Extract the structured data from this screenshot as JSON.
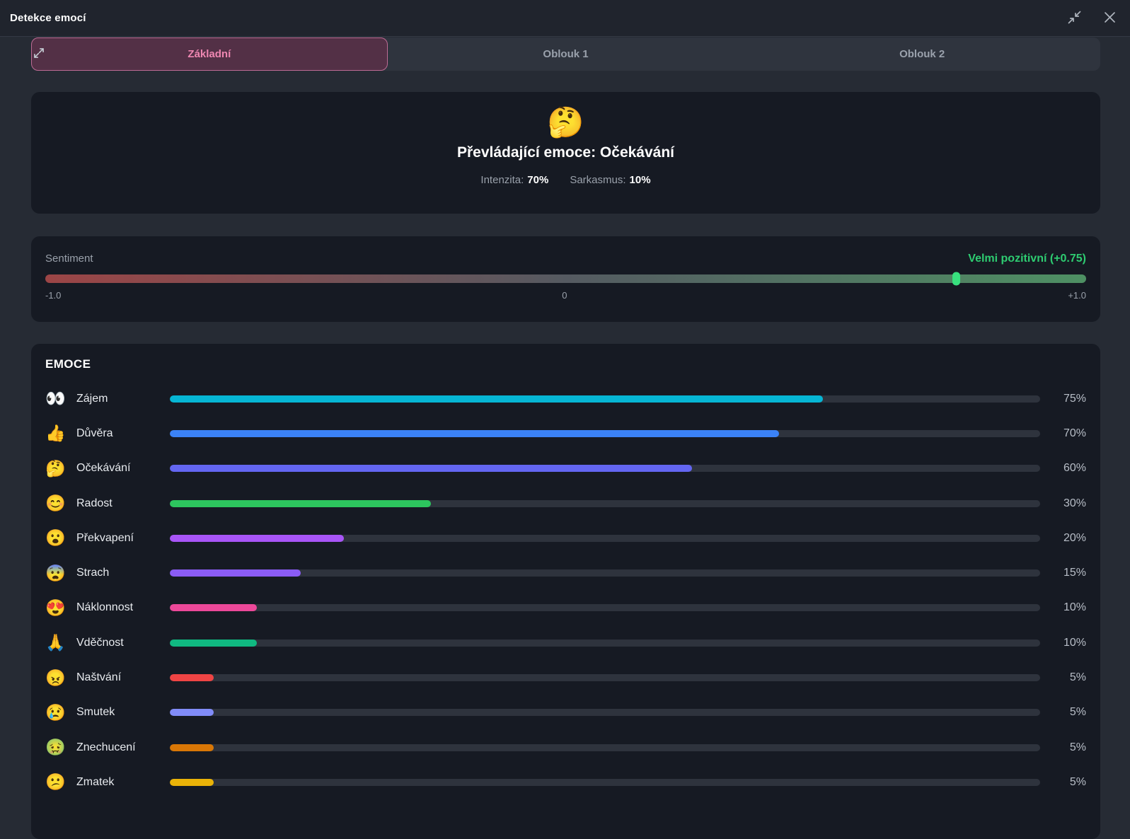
{
  "window": {
    "title": "Detekce emocí"
  },
  "tabs": [
    {
      "label": "Základní",
      "active": true
    },
    {
      "label": "Oblouk 1",
      "active": false
    },
    {
      "label": "Oblouk 2",
      "active": false
    }
  ],
  "dominant": {
    "emoji": "🤔",
    "title": "Převládající emoce: Očekávání",
    "intensity_label": "Intenzita:",
    "intensity_value": "70%",
    "sarcasm_label": "Sarkasmus:",
    "sarcasm_value": "10%"
  },
  "sentiment": {
    "label": "Sentiment",
    "value_text": "Velmi pozitivní (+0.75)",
    "value": 0.75,
    "thumb_pos_pct": 87.5,
    "accent": "#2ecc71",
    "thumb_color": "#38e07e",
    "gradient": [
      "#9c4546",
      "#555a61",
      "#4e9063"
    ],
    "min_label": "-1.0",
    "mid_label": "0",
    "max_label": "+1.0"
  },
  "emotions": {
    "header": "EMOCE",
    "rows": [
      {
        "emoji": "👀",
        "label": "Zájem",
        "pct": 75,
        "pct_label": "75%",
        "color": "#06b6d4"
      },
      {
        "emoji": "👍",
        "label": "Důvěra",
        "pct": 70,
        "pct_label": "70%",
        "color": "#3b82f6"
      },
      {
        "emoji": "🤔",
        "label": "Očekávání",
        "pct": 60,
        "pct_label": "60%",
        "color": "#6366f1"
      },
      {
        "emoji": "😊",
        "label": "Radost",
        "pct": 30,
        "pct_label": "30%",
        "color": "#2dc55e"
      },
      {
        "emoji": "😮",
        "label": "Překvapení",
        "pct": 20,
        "pct_label": "20%",
        "color": "#a855f7"
      },
      {
        "emoji": "😨",
        "label": "Strach",
        "pct": 15,
        "pct_label": "15%",
        "color": "#8b5cf6"
      },
      {
        "emoji": "😍",
        "label": "Náklonnost",
        "pct": 10,
        "pct_label": "10%",
        "color": "#ec4899"
      },
      {
        "emoji": "🙏",
        "label": "Vděčnost",
        "pct": 10,
        "pct_label": "10%",
        "color": "#10b981"
      },
      {
        "emoji": "😠",
        "label": "Naštvání",
        "pct": 5,
        "pct_label": "5%",
        "color": "#ef4444"
      },
      {
        "emoji": "😢",
        "label": "Smutek",
        "pct": 5,
        "pct_label": "5%",
        "color": "#818cf8"
      },
      {
        "emoji": "🤢",
        "label": "Znechucení",
        "pct": 5,
        "pct_label": "5%",
        "color": "#d97706"
      },
      {
        "emoji": "😕",
        "label": "Zmatek",
        "pct": 5,
        "pct_label": "5%",
        "color": "#eab308"
      }
    ]
  }
}
